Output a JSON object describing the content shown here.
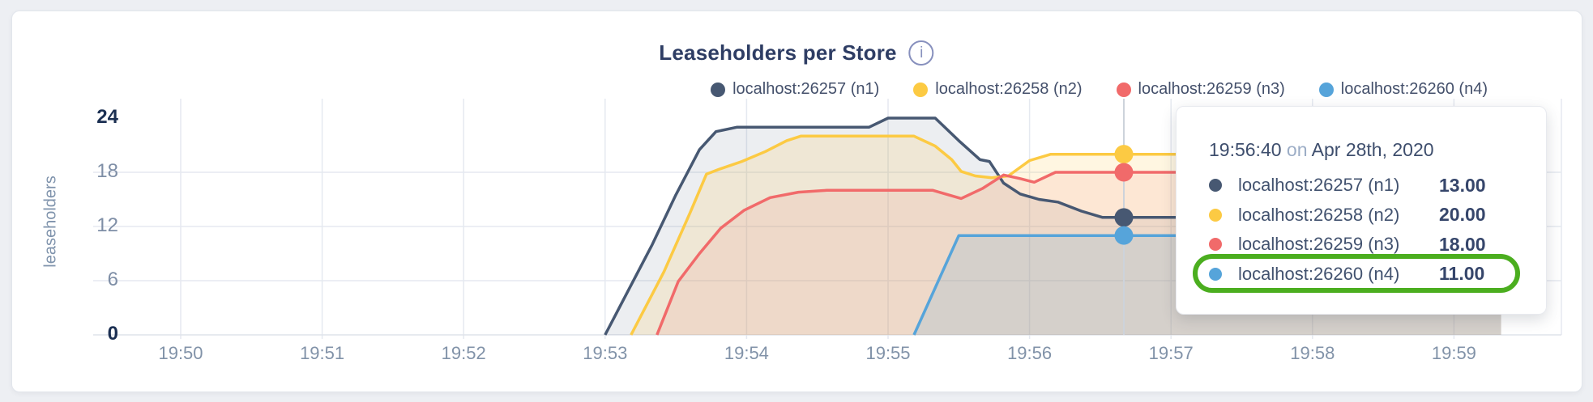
{
  "header": {
    "title": "Leaseholders per Store",
    "info_icon": "i"
  },
  "y_axis": {
    "label": "leaseholders",
    "ticks": [
      24,
      18,
      12,
      6,
      0
    ]
  },
  "x_axis": {
    "ticks": [
      "19:50",
      "19:51",
      "19:52",
      "19:53",
      "19:54",
      "19:55",
      "19:56",
      "19:57",
      "19:58",
      "19:59"
    ]
  },
  "tooltip": {
    "time": "19:56:40",
    "conjunction": "on",
    "date": "Apr 28th, 2020",
    "rows": [
      {
        "label": "localhost:26257 (n1)",
        "value": "13.00",
        "color": "#475872"
      },
      {
        "label": "localhost:26258 (n2)",
        "value": "20.00",
        "color": "#fcca43"
      },
      {
        "label": "localhost:26259 (n3)",
        "value": "18.00",
        "color": "#f16a6a"
      },
      {
        "label": "localhost:26260 (n4)",
        "value": "11.00",
        "color": "#56a4da"
      }
    ],
    "highlight_row_index": 3,
    "highlight_color": "#4bae1f"
  },
  "chart_data": {
    "type": "area",
    "title": "Leaseholders per Store",
    "ylabel": "leaseholders",
    "ylim": [
      0,
      24
    ],
    "y_gridlines": [
      6,
      12,
      18
    ],
    "x_tick_labels": [
      "19:50",
      "19:51",
      "19:52",
      "19:53",
      "19:54",
      "19:55",
      "19:56",
      "19:57",
      "19:58",
      "19:59"
    ],
    "x_unit": "seconds since 19:50:00 on Apr 28th, 2020",
    "x_data_end": 560,
    "legend_position": "top-right",
    "grid": true,
    "hover": {
      "x": 400,
      "label": "19:56:40 on Apr 28th, 2020"
    },
    "series": [
      {
        "name": "localhost:26257 (n1)",
        "color": "#475872",
        "fill": "rgba(71,88,114,0.10)",
        "hover_value": 13,
        "points": [
          [
            180,
            0
          ],
          [
            200,
            10
          ],
          [
            210,
            15.5
          ],
          [
            220,
            20.5
          ],
          [
            227,
            22.5
          ],
          [
            236,
            23
          ],
          [
            292,
            23
          ],
          [
            300,
            24
          ],
          [
            320,
            24
          ],
          [
            330,
            21.5
          ],
          [
            339,
            19.4
          ],
          [
            343,
            19.2
          ],
          [
            349,
            16.8
          ],
          [
            356,
            15.6
          ],
          [
            364,
            15
          ],
          [
            372,
            14.7
          ],
          [
            382,
            13.7
          ],
          [
            391,
            13
          ],
          [
            560,
            13
          ]
        ]
      },
      {
        "name": "localhost:26258 (n2)",
        "color": "#fcca43",
        "fill": "rgba(252,202,67,0.16)",
        "hover_value": 20,
        "points": [
          [
            191,
            0
          ],
          [
            205,
            7
          ],
          [
            216,
            13.5
          ],
          [
            223,
            17.8
          ],
          [
            228,
            18.3
          ],
          [
            238,
            19.2
          ],
          [
            248,
            20.3
          ],
          [
            257,
            21.5
          ],
          [
            263,
            22
          ],
          [
            311,
            22
          ],
          [
            320,
            20.9
          ],
          [
            327,
            19.4
          ],
          [
            331,
            18.1
          ],
          [
            337,
            17.6
          ],
          [
            344,
            17.4
          ],
          [
            351,
            17.6
          ],
          [
            360,
            19.3
          ],
          [
            369,
            20
          ],
          [
            560,
            20
          ]
        ]
      },
      {
        "name": "localhost:26259 (n3)",
        "color": "#f16a6a",
        "fill": "rgba(241,106,106,0.11)",
        "hover_value": 18,
        "points": [
          [
            202,
            0
          ],
          [
            211,
            5.9
          ],
          [
            220,
            9
          ],
          [
            229,
            11.8
          ],
          [
            239,
            13.8
          ],
          [
            250,
            15.2
          ],
          [
            262,
            15.8
          ],
          [
            274,
            16
          ],
          [
            319,
            16
          ],
          [
            331,
            15.1
          ],
          [
            340,
            16.2
          ],
          [
            349,
            17.7
          ],
          [
            356,
            17.3
          ],
          [
            362,
            16.9
          ],
          [
            371,
            18
          ],
          [
            560,
            18
          ]
        ]
      },
      {
        "name": "localhost:26260 (n4)",
        "color": "#56a4da",
        "fill": "rgba(86,164,218,0.16)",
        "hover_value": 11,
        "points": [
          [
            311,
            0
          ],
          [
            330,
            11
          ],
          [
            560,
            11
          ]
        ]
      }
    ]
  }
}
